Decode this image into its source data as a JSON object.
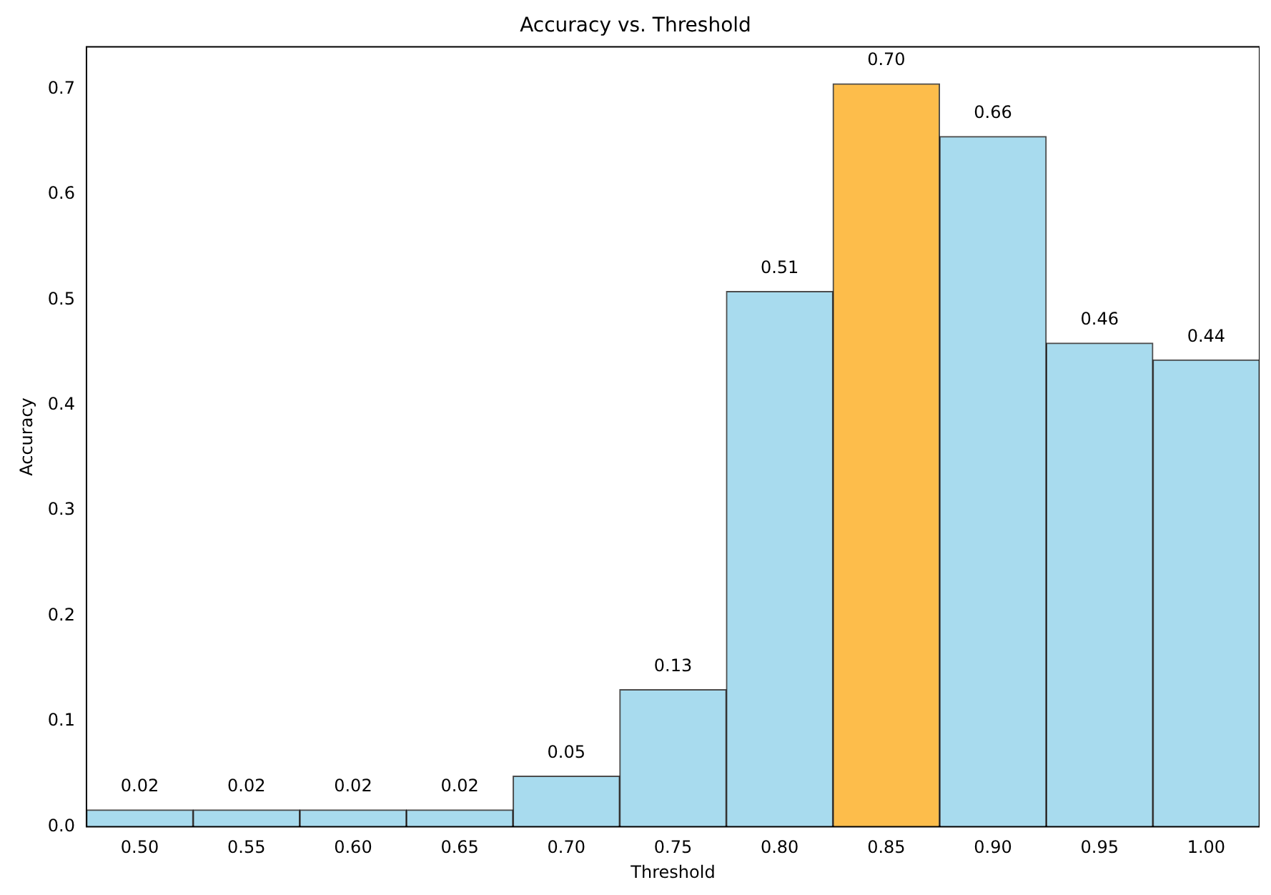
{
  "chart_data": {
    "type": "bar",
    "title": "Accuracy vs. Threshold",
    "xlabel": "Threshold",
    "ylabel": "Accuracy",
    "categories": [
      "0.50",
      "0.55",
      "0.60",
      "0.65",
      "0.70",
      "0.75",
      "0.80",
      "0.85",
      "0.90",
      "0.95",
      "1.00"
    ],
    "values": [
      0.016,
      0.016,
      0.016,
      0.016,
      0.048,
      0.13,
      0.508,
      0.705,
      0.655,
      0.459,
      0.443
    ],
    "value_labels": [
      "0.02",
      "0.02",
      "0.02",
      "0.02",
      "0.05",
      "0.13",
      "0.51",
      "0.70",
      "0.66",
      "0.46",
      "0.44"
    ],
    "colors": [
      "#a8dbee",
      "#a8dbee",
      "#a8dbee",
      "#a8dbee",
      "#a8dbee",
      "#a8dbee",
      "#a8dbee",
      "#fdbd4b",
      "#a8dbee",
      "#a8dbee",
      "#a8dbee"
    ],
    "ylim": [
      0,
      0.74
    ],
    "yticks": [
      {
        "value": 0,
        "label": "0.0"
      },
      0.1,
      0.2,
      0.3,
      0.4,
      0.5,
      0.6,
      0.7
    ],
    "grid": false,
    "legend": false
  }
}
